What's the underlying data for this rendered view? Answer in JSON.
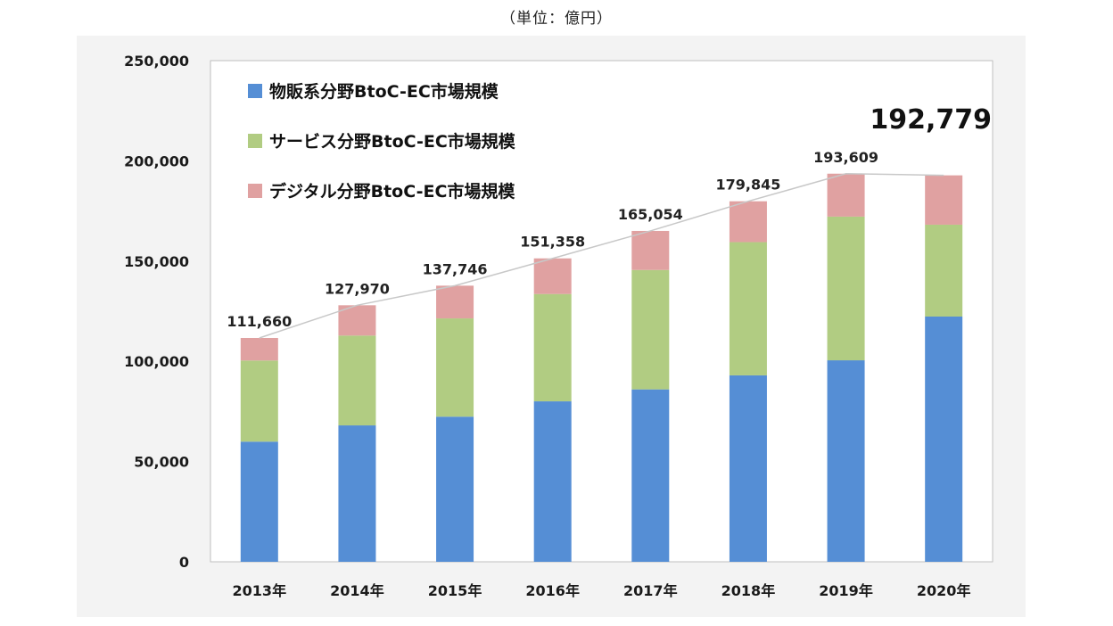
{
  "unit_label": "（単位：億円）",
  "colors": {
    "goods": "#558ed5",
    "services": "#b1cc82",
    "digital": "#e0a1a1",
    "trend_line": "#c8c8c8",
    "axis_text": "#1a1a1a"
  },
  "chart_data": {
    "type": "bar",
    "stacked": true,
    "categories": [
      "2013年",
      "2014年",
      "2015年",
      "2016年",
      "2017年",
      "2018年",
      "2019年",
      "2020年"
    ],
    "series": [
      {
        "name": "物販系分野BtoC-EC市場規模",
        "color_key": "goods",
        "values": [
          59931,
          68043,
          72398,
          80043,
          86008,
          92992,
          100515,
          122333
        ]
      },
      {
        "name": "サービス分野BtoC-EC市場規模",
        "color_key": "services",
        "values": [
          40485,
          44816,
          49014,
          53532,
          59568,
          66471,
          71672,
          45832
        ]
      },
      {
        "name": "デジタル分野BtoC-EC市場規模",
        "color_key": "digital",
        "values": [
          11244,
          15111,
          16334,
          17783,
          19478,
          20382,
          21422,
          24614
        ]
      }
    ],
    "totals": [
      "111,660",
      "127,970",
      "137,746",
      "151,358",
      "165,054",
      "179,845",
      "193,609",
      "192,779"
    ],
    "total_values": [
      111660,
      127970,
      137746,
      151358,
      165054,
      179845,
      193609,
      192779
    ],
    "y_ticks": [
      "0",
      "50,000",
      "100,000",
      "150,000",
      "200,000",
      "250,000"
    ],
    "ylim": [
      0,
      250000
    ],
    "legend_position": "top-left",
    "grid": false,
    "trend_line": true,
    "highlight_last_total": true
  }
}
